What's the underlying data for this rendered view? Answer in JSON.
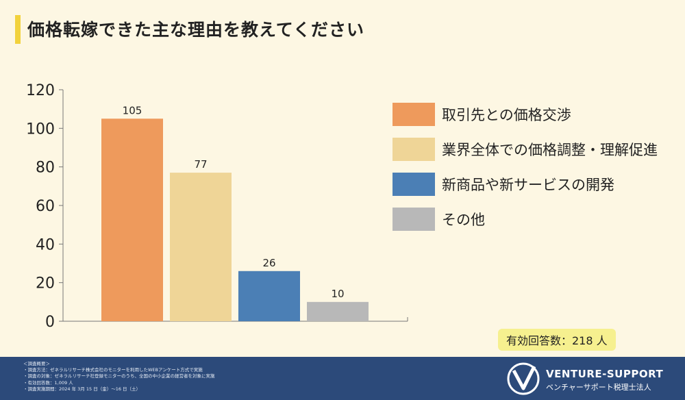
{
  "title": "価格転嫁できた主な理由を教えてください",
  "chart_data": {
    "type": "bar",
    "categories": [
      "取引先との価格交渉",
      "業界全体での価格調整・理解促進",
      "新商品や新サービスの開発",
      "その他"
    ],
    "values": [
      105,
      77,
      26,
      10
    ],
    "colors": [
      "#ee9a5c",
      "#efd597",
      "#4b7fb5",
      "#b8b8b8"
    ],
    "ylim": [
      0,
      120
    ],
    "yticks": [
      0,
      20,
      40,
      60,
      80,
      100,
      120
    ],
    "legend_position": "right"
  },
  "respondents": "有効回答数：218 人",
  "footer": {
    "notes": [
      "＜調査概要＞",
      "・調査方法：ゼネラルリサーチ株式会社のモニターを利用したWEBアンケート方式で実施",
      "・調査の対象：ゼネラルリサーチ社登録モニターのうち、全国の中小企業の経営者を対象に実施",
      "・有効回答数：1,009 人",
      "・調査実施期間：2024 年 3月 15 日（金）～16 日（土）"
    ],
    "brand": "VENTURE-SUPPORT",
    "brand_sub": "ベンチャーサポート税理士法人"
  }
}
